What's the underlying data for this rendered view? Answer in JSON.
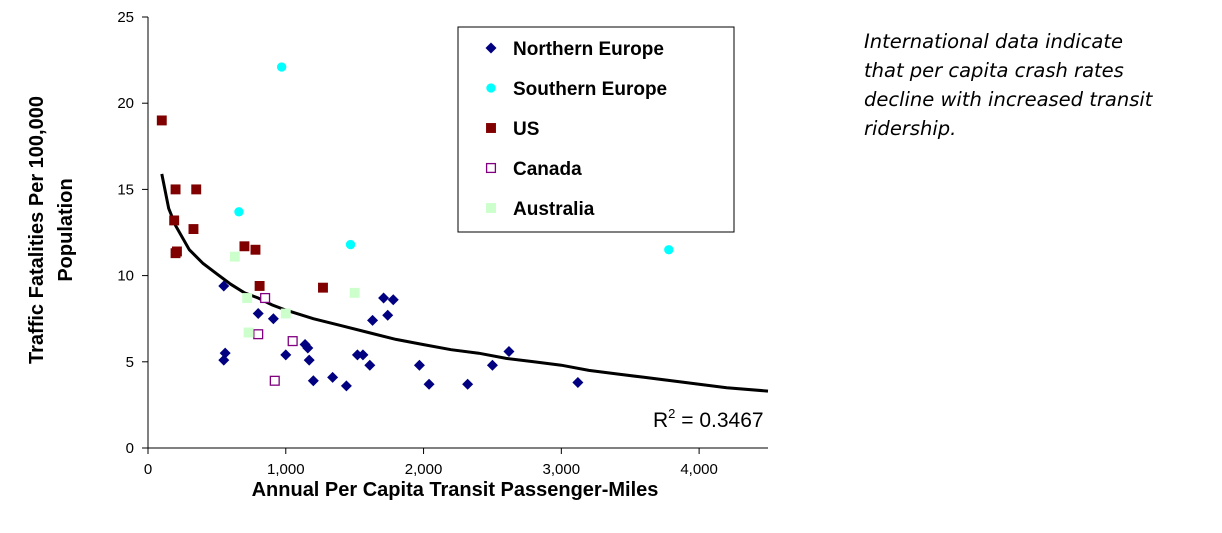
{
  "caption": {
    "lines": [
      "International data indicate",
      "that per capita crash rates",
      "decline with increased transit",
      "ridership."
    ]
  },
  "colors": {
    "northern_europe": "#000080",
    "southern_europe": "#00FFFF",
    "us": "#800000",
    "canada": "#800080",
    "australia": "#CCFFCC",
    "trendline": "#000000"
  },
  "chart_data": {
    "type": "scatter",
    "title": "",
    "xlabel": "Annual Per Capita Transit Passenger-Miles",
    "ylabel_lines": [
      "Traffic Fatalities Per 100,000",
      "Population"
    ],
    "xlim": [
      0,
      4500
    ],
    "ylim": [
      0,
      25
    ],
    "x_ticks": [
      {
        "value": 0,
        "label": "0"
      },
      {
        "value": 1000,
        "label": "1,000"
      },
      {
        "value": 2000,
        "label": "2,000"
      },
      {
        "value": 3000,
        "label": "3,000"
      },
      {
        "value": 4000,
        "label": "4,000"
      }
    ],
    "y_ticks": [
      {
        "value": 0,
        "label": "0"
      },
      {
        "value": 5,
        "label": "5"
      },
      {
        "value": 10,
        "label": "10"
      },
      {
        "value": 15,
        "label": "15"
      },
      {
        "value": 20,
        "label": "20"
      },
      {
        "value": 25,
        "label": "25"
      }
    ],
    "grid": false,
    "legend_position": "top-right",
    "series": [
      {
        "name": "Northern Europe",
        "marker": "diamond",
        "color": "#000080",
        "points": [
          [
            550,
            9.4
          ],
          [
            550,
            5.1
          ],
          [
            560,
            5.5
          ],
          [
            800,
            7.8
          ],
          [
            910,
            7.5
          ],
          [
            1000,
            5.4
          ],
          [
            1140,
            6.0
          ],
          [
            1160,
            5.8
          ],
          [
            1170,
            5.1
          ],
          [
            1200,
            3.9
          ],
          [
            1340,
            4.1
          ],
          [
            1440,
            3.6
          ],
          [
            1520,
            5.4
          ],
          [
            1560,
            5.4
          ],
          [
            1610,
            4.8
          ],
          [
            1630,
            7.4
          ],
          [
            1710,
            8.7
          ],
          [
            1740,
            7.7
          ],
          [
            1780,
            8.6
          ],
          [
            1970,
            4.8
          ],
          [
            2040,
            3.7
          ],
          [
            2320,
            3.7
          ],
          [
            2500,
            4.8
          ],
          [
            2620,
            5.6
          ],
          [
            3120,
            3.8
          ]
        ]
      },
      {
        "name": "Southern Europe",
        "marker": "circle",
        "color": "#00FFFF",
        "points": [
          [
            970,
            22.1
          ],
          [
            660,
            13.7
          ],
          [
            1470,
            11.8
          ],
          [
            3780,
            11.5
          ]
        ]
      },
      {
        "name": "US",
        "marker": "square",
        "color": "#800000",
        "points": [
          [
            100,
            19.0
          ],
          [
            190,
            13.2
          ],
          [
            200,
            15.0
          ],
          [
            200,
            11.3
          ],
          [
            210,
            11.4
          ],
          [
            330,
            12.7
          ],
          [
            350,
            15.0
          ],
          [
            700,
            11.7
          ],
          [
            780,
            11.5
          ],
          [
            810,
            9.4
          ],
          [
            1270,
            9.3
          ]
        ]
      },
      {
        "name": "Canada",
        "marker": "square-open",
        "color": "#800080",
        "points": [
          [
            800,
            6.6
          ],
          [
            850,
            8.7
          ],
          [
            920,
            3.9
          ],
          [
            1050,
            6.2
          ]
        ]
      },
      {
        "name": "Australia",
        "marker": "square",
        "color": "#CCFFCC",
        "points": [
          [
            630,
            11.1
          ],
          [
            720,
            8.7
          ],
          [
            730,
            6.7
          ],
          [
            1000,
            7.8
          ],
          [
            1500,
            9.0
          ]
        ]
      }
    ],
    "trendline": {
      "type": "logarithmic",
      "points": [
        [
          100,
          15.9
        ],
        [
          150,
          13.9
        ],
        [
          200,
          12.9
        ],
        [
          300,
          11.5
        ],
        [
          400,
          10.7
        ],
        [
          500,
          10.1
        ],
        [
          600,
          9.5
        ],
        [
          700,
          9.0
        ],
        [
          800,
          8.7
        ],
        [
          900,
          8.3
        ],
        [
          1000,
          8.0
        ],
        [
          1200,
          7.5
        ],
        [
          1400,
          7.1
        ],
        [
          1600,
          6.7
        ],
        [
          1800,
          6.3
        ],
        [
          2000,
          6.0
        ],
        [
          2200,
          5.7
        ],
        [
          2400,
          5.5
        ],
        [
          2600,
          5.2
        ],
        [
          2800,
          5.0
        ],
        [
          3000,
          4.8
        ],
        [
          3200,
          4.5
        ],
        [
          3400,
          4.3
        ],
        [
          3600,
          4.1
        ],
        [
          3800,
          3.9
        ],
        [
          4000,
          3.7
        ],
        [
          4200,
          3.5
        ],
        [
          4500,
          3.3
        ]
      ]
    },
    "r_squared_label": {
      "prefix": "R",
      "superscript": "2",
      "suffix": " = 0.3467"
    }
  }
}
